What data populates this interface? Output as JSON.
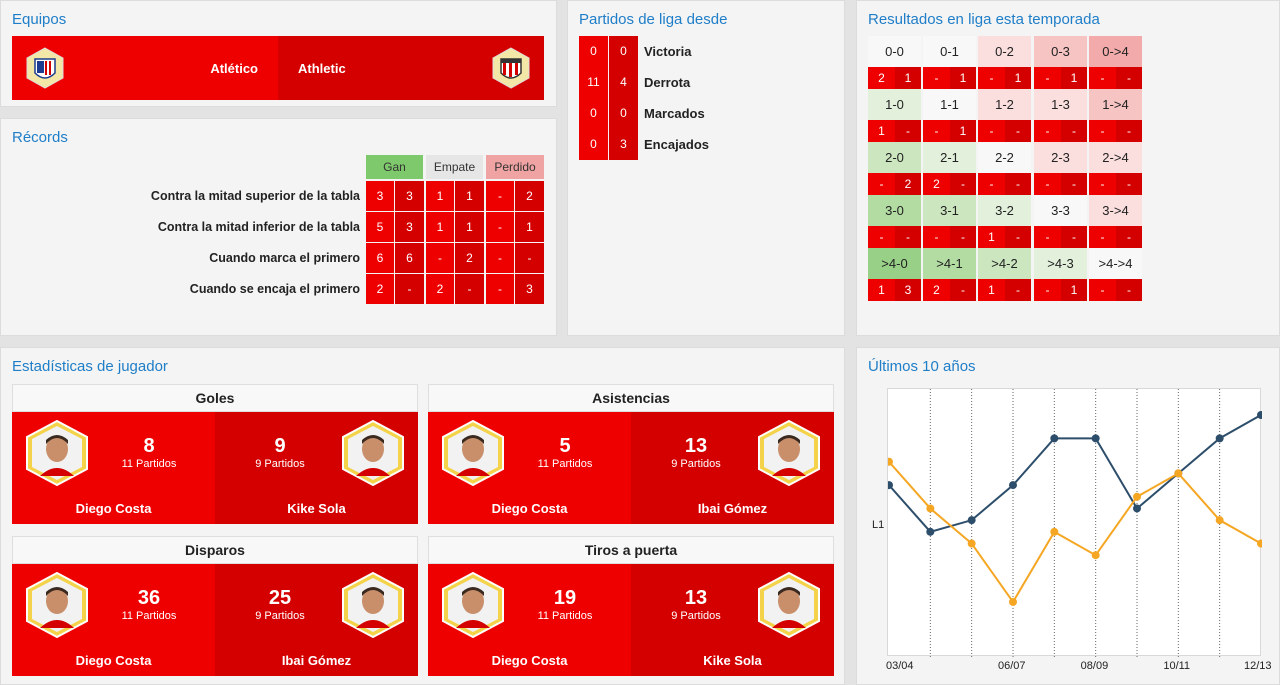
{
  "equipos": {
    "title": "Equipos",
    "home": {
      "name": "Atlético",
      "crest": "atletico-crest-icon"
    },
    "away": {
      "name": "Athletic",
      "crest": "athletic-crest-icon"
    }
  },
  "records": {
    "title": "Récords",
    "headers": [
      "Gan",
      "Empate",
      "Perdido"
    ],
    "header_colors": [
      "#7ec96b",
      "#e6e6e6",
      "#f0a3a3"
    ],
    "rows": [
      {
        "label": "Contra la mitad superior de la tabla",
        "values": [
          "3",
          "3",
          "1",
          "1",
          "-",
          "2"
        ]
      },
      {
        "label": "Contra la mitad inferior de la tabla",
        "values": [
          "5",
          "3",
          "1",
          "1",
          "-",
          "1"
        ]
      },
      {
        "label": "Cuando marca el primero",
        "values": [
          "6",
          "6",
          "-",
          "2",
          "-",
          "-"
        ]
      },
      {
        "label": "Cuando se encaja el primero",
        "values": [
          "2",
          "-",
          "2",
          "-",
          "-",
          "3"
        ]
      }
    ]
  },
  "partidos": {
    "title": "Partidos de liga desde",
    "rows": [
      {
        "label": "Victoria",
        "home": "0",
        "away": "0"
      },
      {
        "label": "Derrota",
        "home": "11",
        "away": "4"
      },
      {
        "label": "Marcados",
        "home": "0",
        "away": "0"
      },
      {
        "label": "Encajados",
        "home": "0",
        "away": "3"
      }
    ]
  },
  "resultados": {
    "title": "Resultados en liga esta temporada",
    "rows": [
      {
        "scores": [
          "0-0",
          "0-1",
          "0-2",
          "0-3",
          "0->4"
        ],
        "score_colors": [
          "#f8f8f8",
          "#f8f8f8",
          "#fbdede",
          "#f7c4c4",
          "#f2aaaa"
        ],
        "counts": [
          [
            "2",
            "1"
          ],
          [
            "-",
            "1"
          ],
          [
            "-",
            "1"
          ],
          [
            "-",
            "1"
          ],
          [
            "-",
            "-"
          ]
        ]
      },
      {
        "scores": [
          "1-0",
          "1-1",
          "1-2",
          "1-3",
          "1->4"
        ],
        "score_colors": [
          "#e3f1dc",
          "#f8f8f8",
          "#fbdede",
          "#fbdede",
          "#f7c4c4"
        ],
        "counts": [
          [
            "1",
            "-"
          ],
          [
            "-",
            "1"
          ],
          [
            "-",
            "-"
          ],
          [
            "-",
            "-"
          ],
          [
            "-",
            "-"
          ]
        ]
      },
      {
        "scores": [
          "2-0",
          "2-1",
          "2-2",
          "2-3",
          "2->4"
        ],
        "score_colors": [
          "#cce7bf",
          "#e3f1dc",
          "#f8f8f8",
          "#fbdede",
          "#fbdede"
        ],
        "counts": [
          [
            "-",
            "2"
          ],
          [
            "2",
            "-"
          ],
          [
            "-",
            "-"
          ],
          [
            "-",
            "-"
          ],
          [
            "-",
            "-"
          ]
        ]
      },
      {
        "scores": [
          "3-0",
          "3-1",
          "3-2",
          "3-3",
          "3->4"
        ],
        "score_colors": [
          "#b3dca3",
          "#cce7bf",
          "#e3f1dc",
          "#f8f8f8",
          "#fbdede"
        ],
        "counts": [
          [
            "-",
            "-"
          ],
          [
            "-",
            "-"
          ],
          [
            "1",
            "-"
          ],
          [
            "-",
            "-"
          ],
          [
            "-",
            "-"
          ]
        ]
      },
      {
        "scores": [
          ">4-0",
          ">4-1",
          ">4-2",
          ">4-3",
          ">4->4"
        ],
        "score_colors": [
          "#99d088",
          "#b3dca3",
          "#cce7bf",
          "#e3f1dc",
          "#f8f8f8"
        ],
        "counts": [
          [
            "1",
            "3"
          ],
          [
            "2",
            "-"
          ],
          [
            "1",
            "-"
          ],
          [
            "-",
            "1"
          ],
          [
            "-",
            "-"
          ]
        ]
      }
    ]
  },
  "player_stats": {
    "title": "Estadísticas de jugador",
    "cards": [
      {
        "title": "Goles",
        "left": {
          "value": "8",
          "sub": "11 Partidos",
          "name": "Diego Costa",
          "portrait": "player-portrait-icon"
        },
        "right": {
          "value": "9",
          "sub": "9 Partidos",
          "name": "Kike Sola",
          "portrait": "player-portrait-icon"
        }
      },
      {
        "title": "Asistencias",
        "left": {
          "value": "5",
          "sub": "11 Partidos",
          "name": "Diego Costa",
          "portrait": "player-portrait-icon"
        },
        "right": {
          "value": "13",
          "sub": "9 Partidos",
          "name": "Ibai Gómez",
          "portrait": "player-portrait-icon"
        }
      },
      {
        "title": "Disparos",
        "left": {
          "value": "36",
          "sub": "11 Partidos",
          "name": "Diego Costa",
          "portrait": "player-portrait-icon"
        },
        "right": {
          "value": "25",
          "sub": "9 Partidos",
          "name": "Ibai Gómez",
          "portrait": "player-portrait-icon"
        }
      },
      {
        "title": "Tiros a puerta",
        "left": {
          "value": "19",
          "sub": "11 Partidos",
          "name": "Diego Costa",
          "portrait": "player-portrait-icon"
        },
        "right": {
          "value": "13",
          "sub": "9 Partidos",
          "name": "Kike Sola",
          "portrait": "player-portrait-icon"
        }
      }
    ]
  },
  "chart_data": {
    "type": "line",
    "title": "Últimos 10 años",
    "x": [
      "03/04",
      "04/05",
      "05/06",
      "06/07",
      "07/08",
      "08/09",
      "09/10",
      "10/11",
      "11/12",
      "12/13"
    ],
    "x_tick_labels": [
      "03/04",
      "06/07",
      "08/09",
      "10/11",
      "12/13"
    ],
    "y_label_ticks": [
      "L1"
    ],
    "y_inverted": true,
    "y_unit": "position",
    "ylim": [
      1,
      20
    ],
    "series": [
      {
        "name": "",
        "color": "#2d4e6b",
        "values": [
          7,
          11,
          10,
          7,
          3,
          3,
          9,
          6,
          3,
          1
        ]
      },
      {
        "name": "",
        "color": "#f5a623",
        "values": [
          5,
          9,
          12,
          17,
          11,
          13,
          8,
          6,
          10,
          12
        ]
      }
    ],
    "grid": "vertical-dotted"
  }
}
